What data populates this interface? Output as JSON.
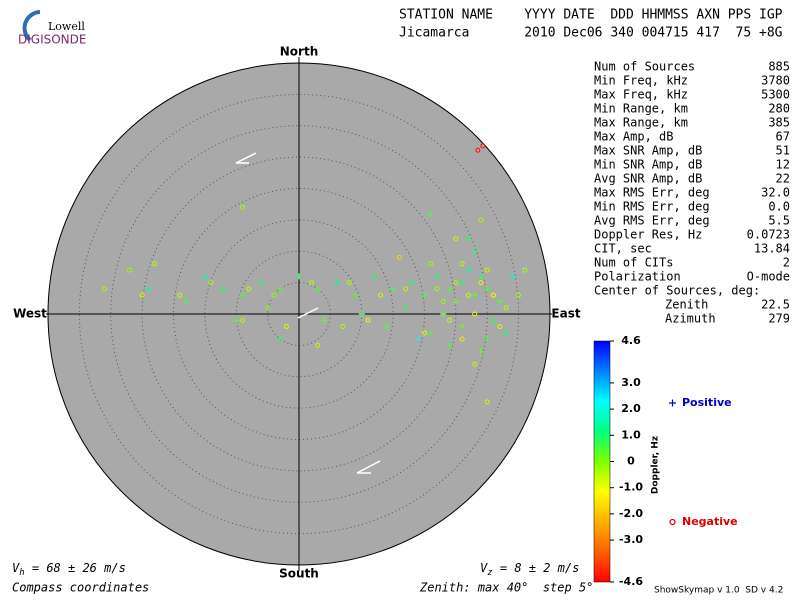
{
  "logo": {
    "top": "Lowell",
    "bottom": "DIGISONDE"
  },
  "header": {
    "line1": "STATION NAME    YYYY DATE  DDD HHMMSS AXN PPS IGP",
    "line2": "Jicamarca       2010 Dec06 340 004715 417  75 +8G"
  },
  "stats": {
    "rows": [
      {
        "label": "Num of Sources",
        "value": "885"
      },
      {
        "label": "Min Freq, kHz",
        "value": "3780"
      },
      {
        "label": "Max Freq, kHz",
        "value": "5300"
      },
      {
        "label": "Min Range, km",
        "value": "280"
      },
      {
        "label": "Max Range, km",
        "value": "385"
      },
      {
        "label": "Max Amp, dB",
        "value": "67"
      },
      {
        "label": "Max SNR Amp, dB",
        "value": "51"
      },
      {
        "label": "Min SNR Amp, dB",
        "value": "12"
      },
      {
        "label": "Avg SNR Amp, dB",
        "value": "22"
      },
      {
        "label": "Max RMS Err, deg",
        "value": "32.0"
      },
      {
        "label": "Min RMS Err, deg",
        "value": "0.0"
      },
      {
        "label": "Avg RMS Err, deg",
        "value": "5.5"
      },
      {
        "label": "Doppler Res, Hz",
        "value": "0.0723"
      },
      {
        "label": "CIT, sec",
        "value": "13.84"
      },
      {
        "label": "Num of CITs",
        "value": "2"
      },
      {
        "label": "Polarization",
        "value": "O-mode"
      }
    ],
    "center": {
      "title": "Center of Sources, deg:",
      "rows": [
        {
          "label": "Zenith",
          "value": "22.5"
        },
        {
          "label": "Azimuth",
          "value": "279"
        }
      ]
    }
  },
  "footer": {
    "vh": {
      "symbol": "V",
      "sub": "h",
      "text": " = 68 ± 26 m/s"
    },
    "vz": {
      "symbol": "V",
      "sub": "z",
      "text": " = 8 ± 2 m/s"
    },
    "coords": "Compass coordinates",
    "zenith": "Zenith: max 40°  step 5°",
    "version": "ShowSkymap v 1.0  SD v 4.2"
  },
  "chart_data": {
    "type": "polar-scatter",
    "compass": {
      "north": "North",
      "south": "South",
      "west": "West",
      "east": "East"
    },
    "rlim": [
      0,
      40
    ],
    "rticks": [
      5,
      10,
      15,
      20,
      25,
      30,
      35,
      40
    ],
    "background": "#a9a9a9",
    "colorbar": {
      "label": "Doppler, Hz",
      "lim": [
        -4.6,
        4.6
      ],
      "colors": [
        "#ff0000",
        "#ff6000",
        "#ffb000",
        "#ffff00",
        "#80ff00",
        "#00ff80",
        "#00ffff",
        "#0080ff",
        "#0000ff"
      ],
      "ticks": [
        4.6,
        {
          "value": 3,
          "label": "3.0"
        },
        {
          "value": 2,
          "label": "2.0"
        },
        {
          "value": 1,
          "label": "1.0"
        },
        0,
        {
          "value": -1,
          "label": "-1.0"
        },
        {
          "value": -2,
          "label": "-2.0"
        },
        {
          "value": -3,
          "label": "-3.0"
        },
        -4.6
      ]
    },
    "series": [
      {
        "name": "Positive",
        "color": "#0000cc",
        "marker": "plus",
        "x": [
          24,
          26,
          28,
          22,
          30,
          25,
          27,
          20,
          32,
          23,
          29,
          26,
          21,
          31,
          18,
          15,
          12,
          9,
          6,
          3,
          0,
          -3,
          -6,
          -9,
          -12,
          -15,
          -18,
          -10,
          -5,
          4,
          10,
          14,
          17,
          28,
          24,
          29,
          34,
          33,
          -24,
          21,
          30,
          27,
          19,
          -3
        ],
        "y": [
          4,
          5,
          3,
          6,
          4,
          2,
          7,
          3,
          2,
          0,
          6,
          -2,
          -3,
          -1,
          5,
          4,
          6,
          3,
          5,
          4,
          6,
          4,
          5,
          3,
          4,
          6,
          2,
          -1,
          1,
          -1,
          0,
          -2,
          1,
          10,
          -5,
          -6,
          6,
          -3,
          4,
          16,
          -4,
          12,
          -4,
          -4
        ],
        "doppler": [
          0.4,
          0.8,
          0.3,
          1.2,
          0.5,
          0.2,
          1.5,
          0.6,
          0.4,
          0.3,
          0.9,
          0.2,
          0.5,
          0.7,
          1.0,
          0.6,
          0.9,
          0.4,
          1.1,
          0.5,
          0.7,
          0.3,
          0.9,
          0.5,
          0.8,
          1.3,
          0.6,
          0.4,
          0.2,
          0.3,
          0.6,
          0.5,
          0.8,
          0.9,
          0.4,
          0.3,
          1.7,
          1.0,
          1.4,
          0.5,
          0.6,
          0.7,
          2.2,
          0.9
        ]
      },
      {
        "name": "Negative",
        "color": "#dd0000",
        "marker": "circle",
        "x": [
          25,
          27,
          23,
          29,
          26,
          31,
          24,
          28,
          22,
          30,
          33,
          20,
          26,
          32,
          21,
          17,
          13,
          8,
          2,
          -4,
          -8,
          -14,
          -19,
          -25,
          -23,
          -31,
          -27,
          -9,
          -2,
          7,
          11,
          28,
          35,
          36,
          -9,
          29,
          25,
          30,
          28.5,
          29.3,
          3,
          16
        ],
        "y": [
          5,
          3,
          2,
          5,
          8,
          3,
          -1,
          0,
          4,
          7,
          1,
          -3,
          -4,
          -2,
          8,
          4,
          3,
          5,
          5,
          3,
          4,
          5,
          3,
          3,
          8,
          4,
          7,
          -1,
          -2,
          -2,
          -1,
          -8,
          3,
          7,
          17,
          15,
          12,
          -14,
          26.1,
          26.8,
          -5,
          9
        ],
        "doppler": [
          -0.3,
          -0.5,
          -0.2,
          -0.8,
          -0.4,
          -1.0,
          -0.6,
          -1.3,
          -0.3,
          -0.5,
          -0.4,
          -0.9,
          -1.5,
          -0.7,
          -0.2,
          -0.4,
          -0.6,
          -0.3,
          -0.5,
          -0.2,
          -0.4,
          -0.3,
          -0.5,
          -0.7,
          -0.4,
          -0.3,
          -0.2,
          -0.3,
          -0.6,
          -0.4,
          -0.9,
          -0.5,
          -0.3,
          -0.4,
          -0.2,
          -0.3,
          -0.5,
          -0.6,
          -4.5,
          -4.4,
          -0.5,
          -1.8
        ]
      }
    ]
  }
}
